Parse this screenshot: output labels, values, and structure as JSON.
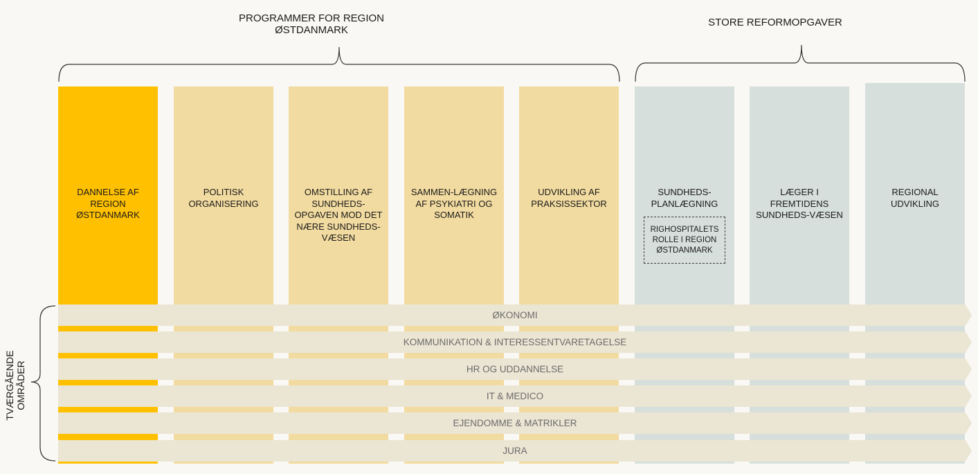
{
  "groups": {
    "programs_title": "PROGRAMMER FOR REGION ØSTDANMARK",
    "reforms_title": "STORE REFORMOPGAVER"
  },
  "columns": [
    {
      "label": "DANNELSE AF REGION ØSTDANMARK"
    },
    {
      "label": "POLITISK ORGANISERING"
    },
    {
      "label": "OMSTILLING AF SUNDHEDS-OPGAVEN MOD DET NÆRE SUNDHEDS-VÆSEN"
    },
    {
      "label": "SAMMEN-LÆGNING AF PSYKIATRI OG SOMATIK"
    },
    {
      "label": "UDVIKLING AF PRAKSISSEKTOR"
    },
    {
      "label": "SUNDHEDS-PLANLÆGNING",
      "sub_box": "RIGHOSPITALETS ROLLE I REGION ØSTDANMARK"
    },
    {
      "label": "LÆGER I FREMTIDENS SUNDHEDS-VÆSEN"
    },
    {
      "label": "REGIONAL UDVIKLING"
    }
  ],
  "bands": [
    "ØKONOMI",
    "KOMMUNIKATION & INTERESSENTVARETAGELSE",
    "HR OG UDDANNELSE",
    "IT & MEDICO",
    "EJENDOMME & MATRIKLER",
    "JURA"
  ],
  "side_label": "TVÆRGÅENDE OMRÅDER",
  "colors": {
    "active_program": "#ffc000",
    "program": "#f2dba0",
    "reform": "#d6dfdc",
    "band": "#ebe5d3"
  }
}
